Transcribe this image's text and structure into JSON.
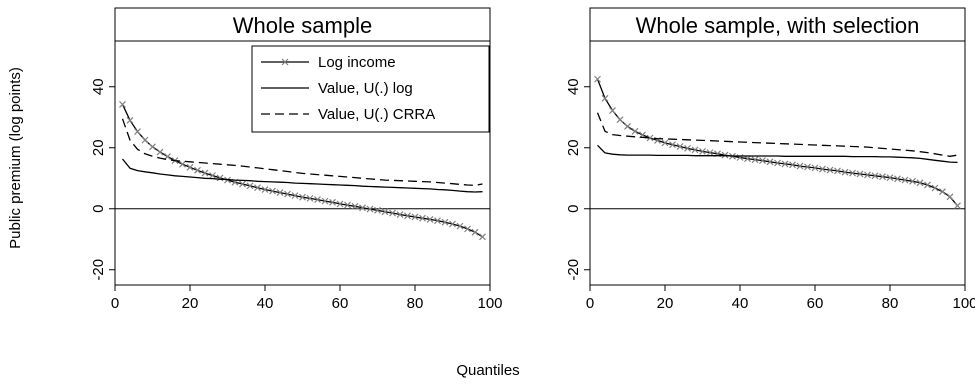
{
  "figure": {
    "ylabel": "Public premium (log points)",
    "xlabel": "Quantiles"
  },
  "chart_data": [
    {
      "type": "line",
      "title": "Whole sample",
      "xlim": [
        0,
        100
      ],
      "ylim": [
        -25,
        55
      ],
      "xticks": [
        "0",
        "20",
        "40",
        "60",
        "80",
        "100"
      ],
      "xtick_values": [
        0,
        20,
        40,
        60,
        80,
        100
      ],
      "yticks": [
        "-20",
        "0",
        "20",
        "40"
      ],
      "ytick_values": [
        -20,
        0,
        20,
        40
      ],
      "reference_line_y": 0,
      "legend": "top-right",
      "series": [
        {
          "name": "Log income",
          "style": "solid-with-x-markers",
          "color": "#000000",
          "marker_color": "#808080",
          "x": [
            2,
            4,
            6,
            8,
            10,
            12,
            14,
            16,
            18,
            20,
            22,
            24,
            26,
            28,
            30,
            32,
            34,
            36,
            38,
            40,
            42,
            44,
            46,
            48,
            50,
            52,
            54,
            56,
            58,
            60,
            62,
            64,
            66,
            68,
            70,
            72,
            74,
            76,
            78,
            80,
            82,
            84,
            86,
            88,
            90,
            92,
            94,
            96,
            98
          ],
          "values": [
            34.2,
            29.0,
            25.3,
            22.5,
            20.3,
            18.6,
            17.1,
            15.8,
            14.6,
            13.6,
            12.6,
            11.7,
            10.9,
            10.1,
            9.4,
            8.7,
            8.1,
            7.5,
            6.9,
            6.3,
            5.8,
            5.3,
            4.8,
            4.3,
            3.8,
            3.4,
            3.0,
            2.5,
            2.1,
            1.6,
            1.2,
            0.8,
            0.3,
            -0.1,
            -0.5,
            -1.0,
            -1.4,
            -1.9,
            -2.3,
            -2.7,
            -3.1,
            -3.5,
            -3.9,
            -4.4,
            -5.0,
            -5.7,
            -6.6,
            -7.7,
            -9.2
          ]
        },
        {
          "name": "Value, U(.) log",
          "style": "solid",
          "color": "#000000",
          "x": [
            2,
            4,
            6,
            8,
            10,
            12,
            14,
            16,
            18,
            20,
            22,
            24,
            26,
            28,
            30,
            32,
            34,
            36,
            38,
            40,
            42,
            44,
            46,
            48,
            50,
            52,
            54,
            56,
            58,
            60,
            62,
            64,
            66,
            68,
            70,
            72,
            74,
            76,
            78,
            80,
            82,
            84,
            86,
            88,
            90,
            92,
            94,
            96,
            98
          ],
          "values": [
            16.3,
            13.3,
            12.5,
            12.1,
            11.8,
            11.4,
            11.1,
            10.8,
            10.6,
            10.4,
            10.2,
            10.0,
            9.9,
            9.7,
            9.6,
            9.4,
            9.3,
            9.2,
            9.0,
            8.9,
            8.8,
            8.7,
            8.6,
            8.4,
            8.3,
            8.2,
            8.1,
            8.0,
            7.9,
            7.8,
            7.7,
            7.6,
            7.4,
            7.3,
            7.2,
            7.1,
            7.0,
            6.9,
            6.8,
            6.7,
            6.6,
            6.5,
            6.3,
            6.2,
            6.0,
            5.8,
            5.6,
            5.5,
            5.6
          ]
        },
        {
          "name": "Value, U(.) CRRA",
          "style": "dashed",
          "color": "#000000",
          "x": [
            2,
            4,
            6,
            8,
            10,
            12,
            14,
            16,
            18,
            20,
            22,
            24,
            26,
            28,
            30,
            32,
            34,
            36,
            38,
            40,
            42,
            44,
            46,
            48,
            50,
            52,
            54,
            56,
            58,
            60,
            62,
            64,
            66,
            68,
            70,
            72,
            74,
            76,
            78,
            80,
            82,
            84,
            86,
            88,
            90,
            92,
            94,
            96,
            98
          ],
          "values": [
            29.5,
            22.5,
            19.5,
            18.0,
            17.2,
            16.6,
            16.1,
            15.8,
            15.6,
            15.4,
            15.2,
            15.0,
            14.8,
            14.6,
            14.4,
            14.2,
            14.0,
            13.7,
            13.4,
            13.1,
            12.8,
            12.5,
            12.2,
            11.9,
            11.6,
            11.4,
            11.2,
            11.0,
            10.8,
            10.6,
            10.4,
            10.2,
            10.0,
            9.8,
            9.6,
            9.4,
            9.3,
            9.2,
            9.1,
            9.0,
            8.9,
            8.8,
            8.6,
            8.4,
            8.2,
            8.0,
            7.8,
            7.7,
            8.1
          ]
        }
      ]
    },
    {
      "type": "line",
      "title": "Whole sample, with selection",
      "xlim": [
        0,
        100
      ],
      "ylim": [
        -25,
        55
      ],
      "xticks": [
        "0",
        "20",
        "40",
        "60",
        "80",
        "100"
      ],
      "xtick_values": [
        0,
        20,
        40,
        60,
        80,
        100
      ],
      "yticks": [
        "-20",
        "0",
        "20",
        "40"
      ],
      "ytick_values": [
        -20,
        0,
        20,
        40
      ],
      "reference_line_y": 0,
      "legend": "none",
      "series": [
        {
          "name": "Log income",
          "style": "solid-with-x-markers",
          "color": "#000000",
          "marker_color": "#808080",
          "x": [
            2,
            4,
            6,
            8,
            10,
            12,
            14,
            16,
            18,
            20,
            22,
            24,
            26,
            28,
            30,
            32,
            34,
            36,
            38,
            40,
            42,
            44,
            46,
            48,
            50,
            52,
            54,
            56,
            58,
            60,
            62,
            64,
            66,
            68,
            70,
            72,
            74,
            76,
            78,
            80,
            82,
            84,
            86,
            88,
            90,
            92,
            94,
            96,
            98
          ],
          "values": [
            42.5,
            36.2,
            32.2,
            29.2,
            27.0,
            25.4,
            24.2,
            23.2,
            22.4,
            21.6,
            21.0,
            20.4,
            19.8,
            19.3,
            18.8,
            18.4,
            18.0,
            17.6,
            17.2,
            16.8,
            16.4,
            16.1,
            15.8,
            15.4,
            15.0,
            14.7,
            14.4,
            14.0,
            13.7,
            13.4,
            13.0,
            12.7,
            12.4,
            12.0,
            11.7,
            11.4,
            11.1,
            10.8,
            10.5,
            10.2,
            9.8,
            9.4,
            9.0,
            8.5,
            7.8,
            6.8,
            5.6,
            3.9,
            1.0
          ]
        },
        {
          "name": "Value, U(.) log",
          "style": "solid",
          "color": "#000000",
          "x": [
            2,
            4,
            6,
            8,
            10,
            12,
            14,
            16,
            18,
            20,
            22,
            24,
            26,
            28,
            30,
            32,
            34,
            36,
            38,
            40,
            42,
            44,
            46,
            48,
            50,
            52,
            54,
            56,
            58,
            60,
            62,
            64,
            66,
            68,
            70,
            72,
            74,
            76,
            78,
            80,
            82,
            84,
            86,
            88,
            90,
            92,
            94,
            96,
            98
          ],
          "values": [
            20.8,
            18.3,
            17.9,
            17.7,
            17.6,
            17.6,
            17.6,
            17.6,
            17.5,
            17.5,
            17.5,
            17.5,
            17.5,
            17.4,
            17.4,
            17.4,
            17.4,
            17.4,
            17.3,
            17.3,
            17.3,
            17.3,
            17.3,
            17.3,
            17.3,
            17.2,
            17.2,
            17.2,
            17.2,
            17.2,
            17.2,
            17.2,
            17.2,
            17.2,
            17.1,
            17.1,
            17.1,
            17.1,
            17.0,
            17.0,
            16.9,
            16.8,
            16.7,
            16.5,
            16.2,
            15.9,
            15.6,
            15.3,
            15.2
          ]
        },
        {
          "name": "Value, U(.) CRRA",
          "style": "dashed",
          "color": "#000000",
          "x": [
            2,
            4,
            6,
            8,
            10,
            12,
            14,
            16,
            18,
            20,
            22,
            24,
            26,
            28,
            30,
            32,
            34,
            36,
            38,
            40,
            42,
            44,
            46,
            48,
            50,
            52,
            54,
            56,
            58,
            60,
            62,
            64,
            66,
            68,
            70,
            72,
            74,
            76,
            78,
            80,
            82,
            84,
            86,
            88,
            90,
            92,
            94,
            96,
            98
          ],
          "values": [
            31.5,
            25.4,
            24.3,
            24.0,
            23.8,
            23.6,
            23.4,
            23.2,
            23.0,
            22.9,
            22.8,
            22.7,
            22.6,
            22.5,
            22.4,
            22.3,
            22.2,
            22.1,
            22.0,
            21.9,
            21.8,
            21.7,
            21.6,
            21.5,
            21.4,
            21.3,
            21.2,
            21.1,
            21.0,
            20.9,
            20.8,
            20.7,
            20.6,
            20.5,
            20.4,
            20.3,
            20.2,
            20.0,
            19.8,
            19.6,
            19.4,
            19.2,
            19.0,
            18.7,
            18.4,
            18.0,
            17.6,
            17.2,
            17.6
          ]
        }
      ]
    }
  ]
}
